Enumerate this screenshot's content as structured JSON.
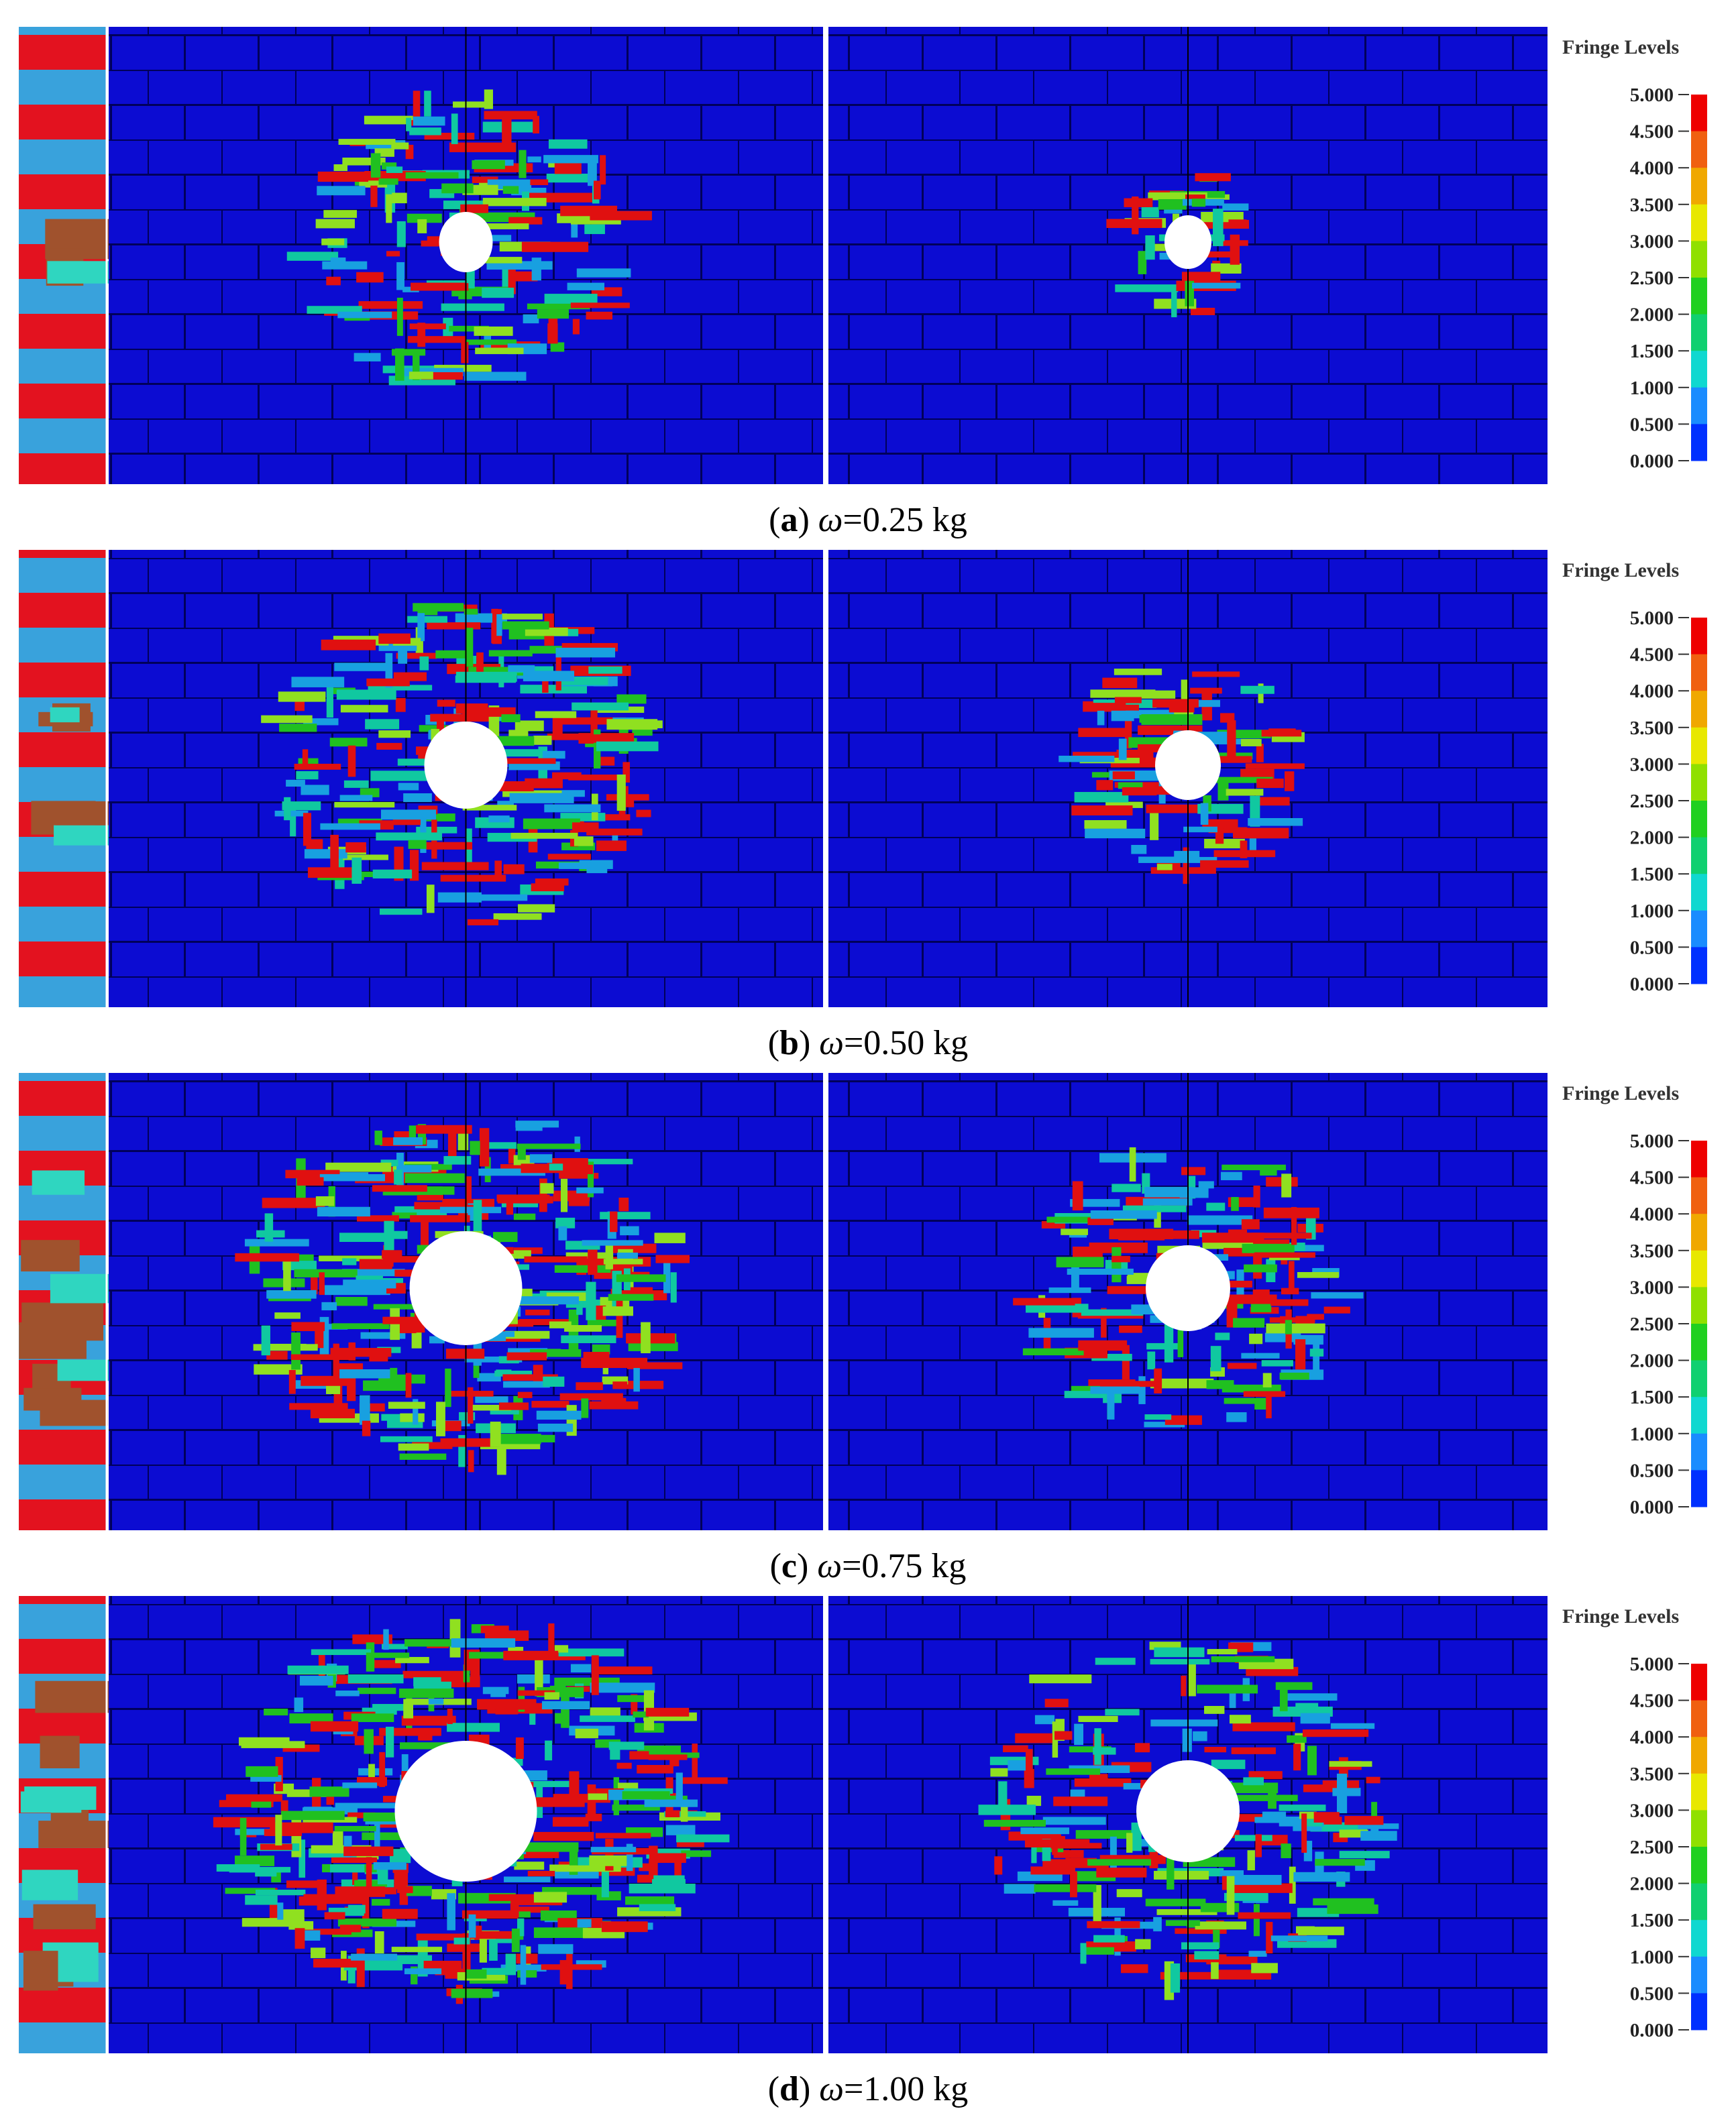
{
  "panels": [
    {
      "caption": [
        "(",
        "a",
        ") ",
        "ω",
        "=0.25 kg"
      ],
      "legend": {
        "title": "Fringe Levels",
        "levels": [
          "5.000",
          "4.500",
          "4.000",
          "3.500",
          "3.000",
          "2.500",
          "2.000",
          "1.500",
          "1.000",
          "0.500",
          "0.000"
        ]
      }
    },
    {
      "caption": [
        "(",
        "b",
        ") ",
        "ω",
        "=0.50 kg"
      ],
      "legend": {
        "title": "Fringe Levels",
        "levels": [
          "5.000",
          "4.500",
          "4.000",
          "3.500",
          "3.000",
          "2.500",
          "2.000",
          "1.500",
          "1.000",
          "0.500",
          "0.000"
        ]
      }
    },
    {
      "caption": [
        "(",
        "c",
        ") ",
        "ω",
        "=0.75 kg"
      ],
      "legend": {
        "title": "Fringe Levels",
        "levels": [
          "5.000",
          "4.500",
          "4.000",
          "3.500",
          "3.000",
          "2.500",
          "2.000",
          "1.500",
          "1.000",
          "0.500",
          "0.000"
        ]
      }
    },
    {
      "caption": [
        "(",
        "d",
        ") ",
        "ω",
        "=1.00 kg"
      ],
      "legend": {
        "title": "Fringe Levels",
        "levels": [
          "5.000",
          "4.500",
          "4.000",
          "3.500",
          "3.000",
          "2.500",
          "2.000",
          "1.500",
          "1.000",
          "0.500",
          "0.000"
        ]
      }
    }
  ]
}
